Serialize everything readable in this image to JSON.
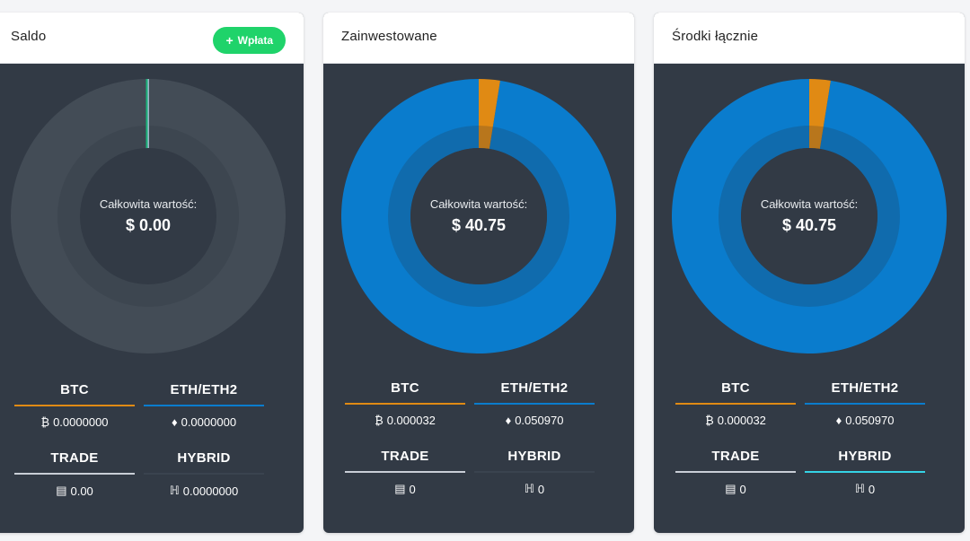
{
  "colors": {
    "btc": "#e08a14",
    "eth": "#0a7ccd",
    "trade": "#c9ced6",
    "hybrid": "#35d3e6",
    "empty_ring": "#434c56",
    "inner_ring": "#3d4650",
    "card_bg": "#323a45",
    "inactive_underline": "#3a434f",
    "hybrid_empty": "#1cb57c"
  },
  "cards": [
    {
      "title": "Saldo",
      "deposit_button": "Wpłata",
      "total_label": "Całkowita wartość:",
      "total_value": "$ 0.00",
      "chart": {
        "btc": 0.0,
        "eth": 0.0
      },
      "assets": [
        {
          "name": "BTC",
          "icon": "₿",
          "icon_name": "bitcoin-icon",
          "amount": "0.0000000",
          "underline": "#e08a14"
        },
        {
          "name": "ETH/ETH2",
          "icon": "♦",
          "icon_name": "ethereum-icon",
          "amount": "0.0000000",
          "underline": "#0a7ccd"
        },
        {
          "name": "TRADE",
          "icon": "▤",
          "icon_name": "trade-icon",
          "amount": "0.00",
          "underline": "#c9ced6"
        },
        {
          "name": "HYBRID",
          "icon": "ℍ",
          "icon_name": "hybrid-icon",
          "amount": "0.0000000",
          "underline": "#3a434f"
        }
      ]
    },
    {
      "title": "Zainwestowane",
      "total_label": "Całkowita wartość:",
      "total_value": "$ 40.75",
      "chart": {
        "btc": 0.025,
        "eth": 0.975
      },
      "assets": [
        {
          "name": "BTC",
          "icon": "₿",
          "icon_name": "bitcoin-icon",
          "amount": "0.000032",
          "underline": "#e08a14"
        },
        {
          "name": "ETH/ETH2",
          "icon": "♦",
          "icon_name": "ethereum-icon",
          "amount": "0.050970",
          "underline": "#0a7ccd"
        },
        {
          "name": "TRADE",
          "icon": "▤",
          "icon_name": "trade-icon",
          "amount": "0",
          "underline": "#c9ced6"
        },
        {
          "name": "HYBRID",
          "icon": "ℍ",
          "icon_name": "hybrid-icon",
          "amount": "0",
          "underline": "#3a434f"
        }
      ]
    },
    {
      "title": "Środki łącznie",
      "total_label": "Całkowita wartość:",
      "total_value": "$ 40.75",
      "chart": {
        "btc": 0.025,
        "eth": 0.975
      },
      "assets": [
        {
          "name": "BTC",
          "icon": "₿",
          "icon_name": "bitcoin-icon",
          "amount": "0.000032",
          "underline": "#e08a14"
        },
        {
          "name": "ETH/ETH2",
          "icon": "♦",
          "icon_name": "ethereum-icon",
          "amount": "0.050970",
          "underline": "#0a7ccd"
        },
        {
          "name": "TRADE",
          "icon": "▤",
          "icon_name": "trade-icon",
          "amount": "0",
          "underline": "#c9ced6"
        },
        {
          "name": "HYBRID",
          "icon": "ℍ",
          "icon_name": "hybrid-icon",
          "amount": "0",
          "underline": "#35d3e6"
        }
      ]
    }
  ]
}
